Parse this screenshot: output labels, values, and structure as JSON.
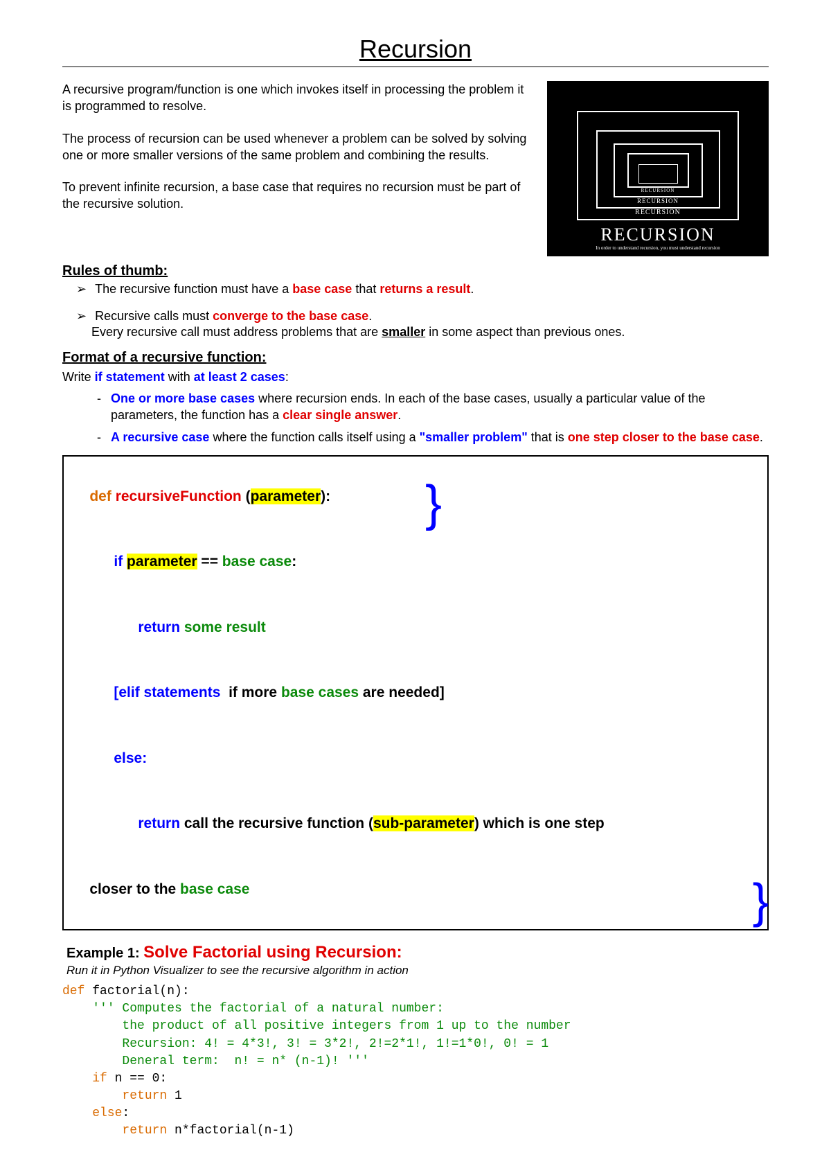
{
  "title": "Recursion",
  "intro": {
    "p1": "A recursive program/function is one which invokes itself in processing the problem it is programmed to resolve.",
    "p2": "The process of recursion can be used whenever a problem can be solved by solving one or more smaller versions of the same problem and combining the results.",
    "p3": "To prevent infinite recursion, a base case that requires no recursion must be part of the recursive solution."
  },
  "poster": {
    "label_small2": "RECURSION",
    "label_small": "RECURSION",
    "label_big": "RECURSION",
    "subtitle": "In order to understand recursion, you must understand recursion"
  },
  "rules": {
    "heading": "Rules of thumb:",
    "r1_a": "The recursive function must have a ",
    "r1_b": "base case",
    "r1_c": " that ",
    "r1_d": "returns a result",
    "r1_e": ".",
    "r2_a": "Recursive calls must ",
    "r2_b": "converge to the base case",
    "r2_c": ".",
    "r2_sub_a": "Every recursive call must address problems that are ",
    "r2_sub_b": "smaller",
    "r2_sub_c": " in some aspect than previous ones."
  },
  "format": {
    "heading": "Format of a recursive function:",
    "line1_a": "Write ",
    "line1_b": "if statement",
    "line1_c": " with ",
    "line1_d": "at least 2 cases",
    "line1_e": ":",
    "li1_a": "One or more base cases",
    "li1_b": " where recursion ends. In each of the base cases, usually a particular value of the parameters, the function has a ",
    "li1_c": "clear single answer",
    "li1_d": ".",
    "li2_a": "A recursive case",
    "li2_b": " where the function calls itself using a ",
    "li2_c": "\"smaller problem\"",
    "li2_d": " that is ",
    "li2_e": "one step closer to the base case",
    "li2_f": "."
  },
  "codebox": {
    "def": "def",
    "fn": "recursiveFunction",
    "paren_open": " (",
    "param": "parameter",
    "paren_close": "):",
    "if": "if ",
    "eq": " == ",
    "base_case": "base case",
    "colon": ":",
    "return": "return",
    "some_result": " some result",
    "elif_open": "[elif statements",
    "elif_mid": "  if more ",
    "base_cases": "base cases",
    "elif_end": " are needed]",
    "else": "else:",
    "call": " call the recursive function (",
    "subparam": "sub-parameter",
    "close_which": ") which is one step",
    "closer": "closer to the ",
    "indent6": "      ",
    "indent12": "            ",
    "indent18": "                  "
  },
  "example": {
    "label": "Example 1: ",
    "title": "Solve Factorial using Recursion",
    "colon": ":",
    "sub": "Run it in Python Visualizer to see the recursive algorithm in action",
    "code_def": "def",
    "code_fn": " factorial(n):",
    "c1": "    ''' Computes the factorial of a natural number:",
    "c2": "        the product of all positive integers from 1 up to the number",
    "c3": "        Recursion: 4! = 4*3!, 3! = 3*2!, 2!=2*1!, 1!=1*0!, 0! = 1",
    "c4": "        Deneral term:  n! = n* (n-1)! '''",
    "if": "    if",
    "cond": " n == 0:",
    "ret1_kw": "        return",
    "ret1_v": " 1",
    "else": "    else",
    "else_c": ":",
    "ret2_kw": "        return",
    "ret2_v": " n*factorial(n-1)"
  },
  "colors": {
    "red": "#e00000",
    "blue": "#0000ff",
    "green": "#0b8a0b",
    "orange": "#d96a00",
    "highlight": "#ffff00"
  }
}
